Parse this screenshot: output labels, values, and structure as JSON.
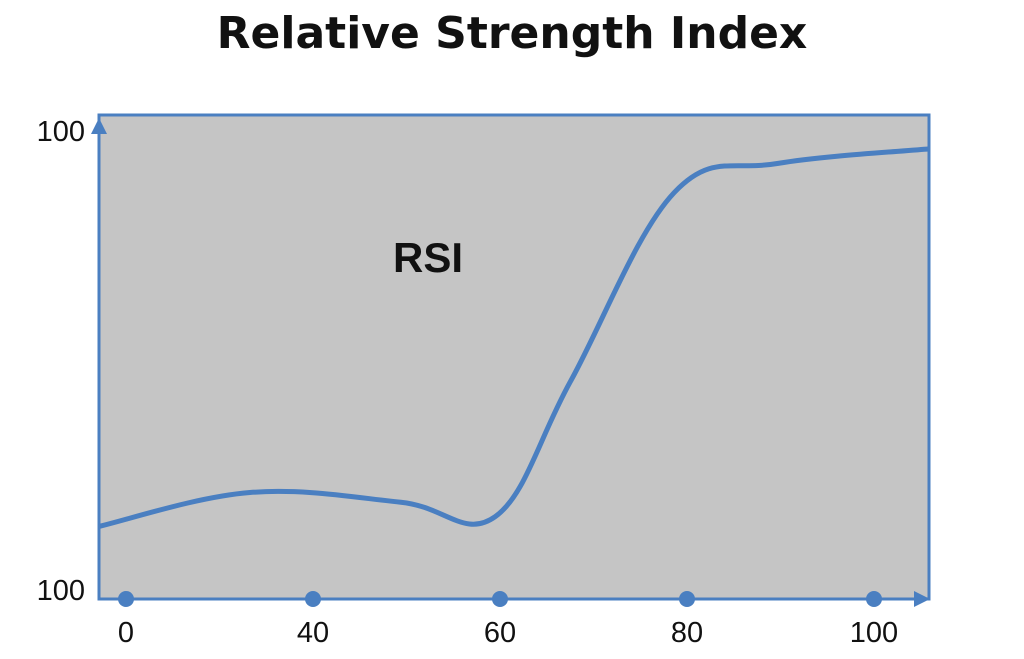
{
  "chart_data": {
    "type": "line",
    "title": "Relative Strength Index",
    "annotation": "RSI",
    "x_ticks": [
      "0",
      "40",
      "60",
      "80",
      "100"
    ],
    "y_ticks": [
      "100",
      "100"
    ],
    "series": [
      {
        "color": "#4a7fc1",
        "points": [
          [
            0,
            15
          ],
          [
            0.8,
            22
          ],
          [
            1.6,
            20
          ],
          [
            2.1,
            17
          ],
          [
            2.5,
            45
          ],
          [
            3.05,
            84
          ],
          [
            3.6,
            90
          ],
          [
            4.4,
            93
          ]
        ]
      }
    ],
    "plot_background": "#c5c5c5",
    "axis_color": "#4a7fc1",
    "grid": false
  }
}
